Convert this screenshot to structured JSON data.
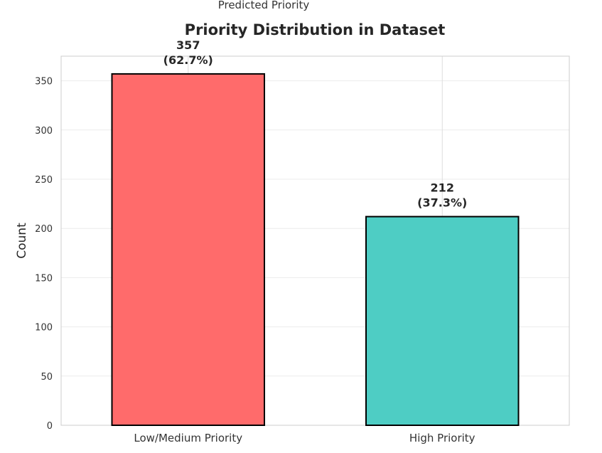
{
  "top_text": "Predicted Priority",
  "chart_data": {
    "type": "bar",
    "title": "Priority Distribution in Dataset",
    "xlabel": "",
    "ylabel": "Count",
    "categories": [
      "Low/Medium Priority",
      "High Priority"
    ],
    "values": [
      357,
      212
    ],
    "data_labels": [
      {
        "count": "357",
        "pct": "(62.7%)"
      },
      {
        "count": "212",
        "pct": "(37.3%)"
      }
    ],
    "colors": [
      "#ff6b6b",
      "#4ecdc4"
    ],
    "edge_color": "#000000",
    "ylim": [
      0,
      375
    ],
    "yticks": [
      0,
      50,
      100,
      150,
      200,
      250,
      300,
      350
    ],
    "grid": true
  }
}
